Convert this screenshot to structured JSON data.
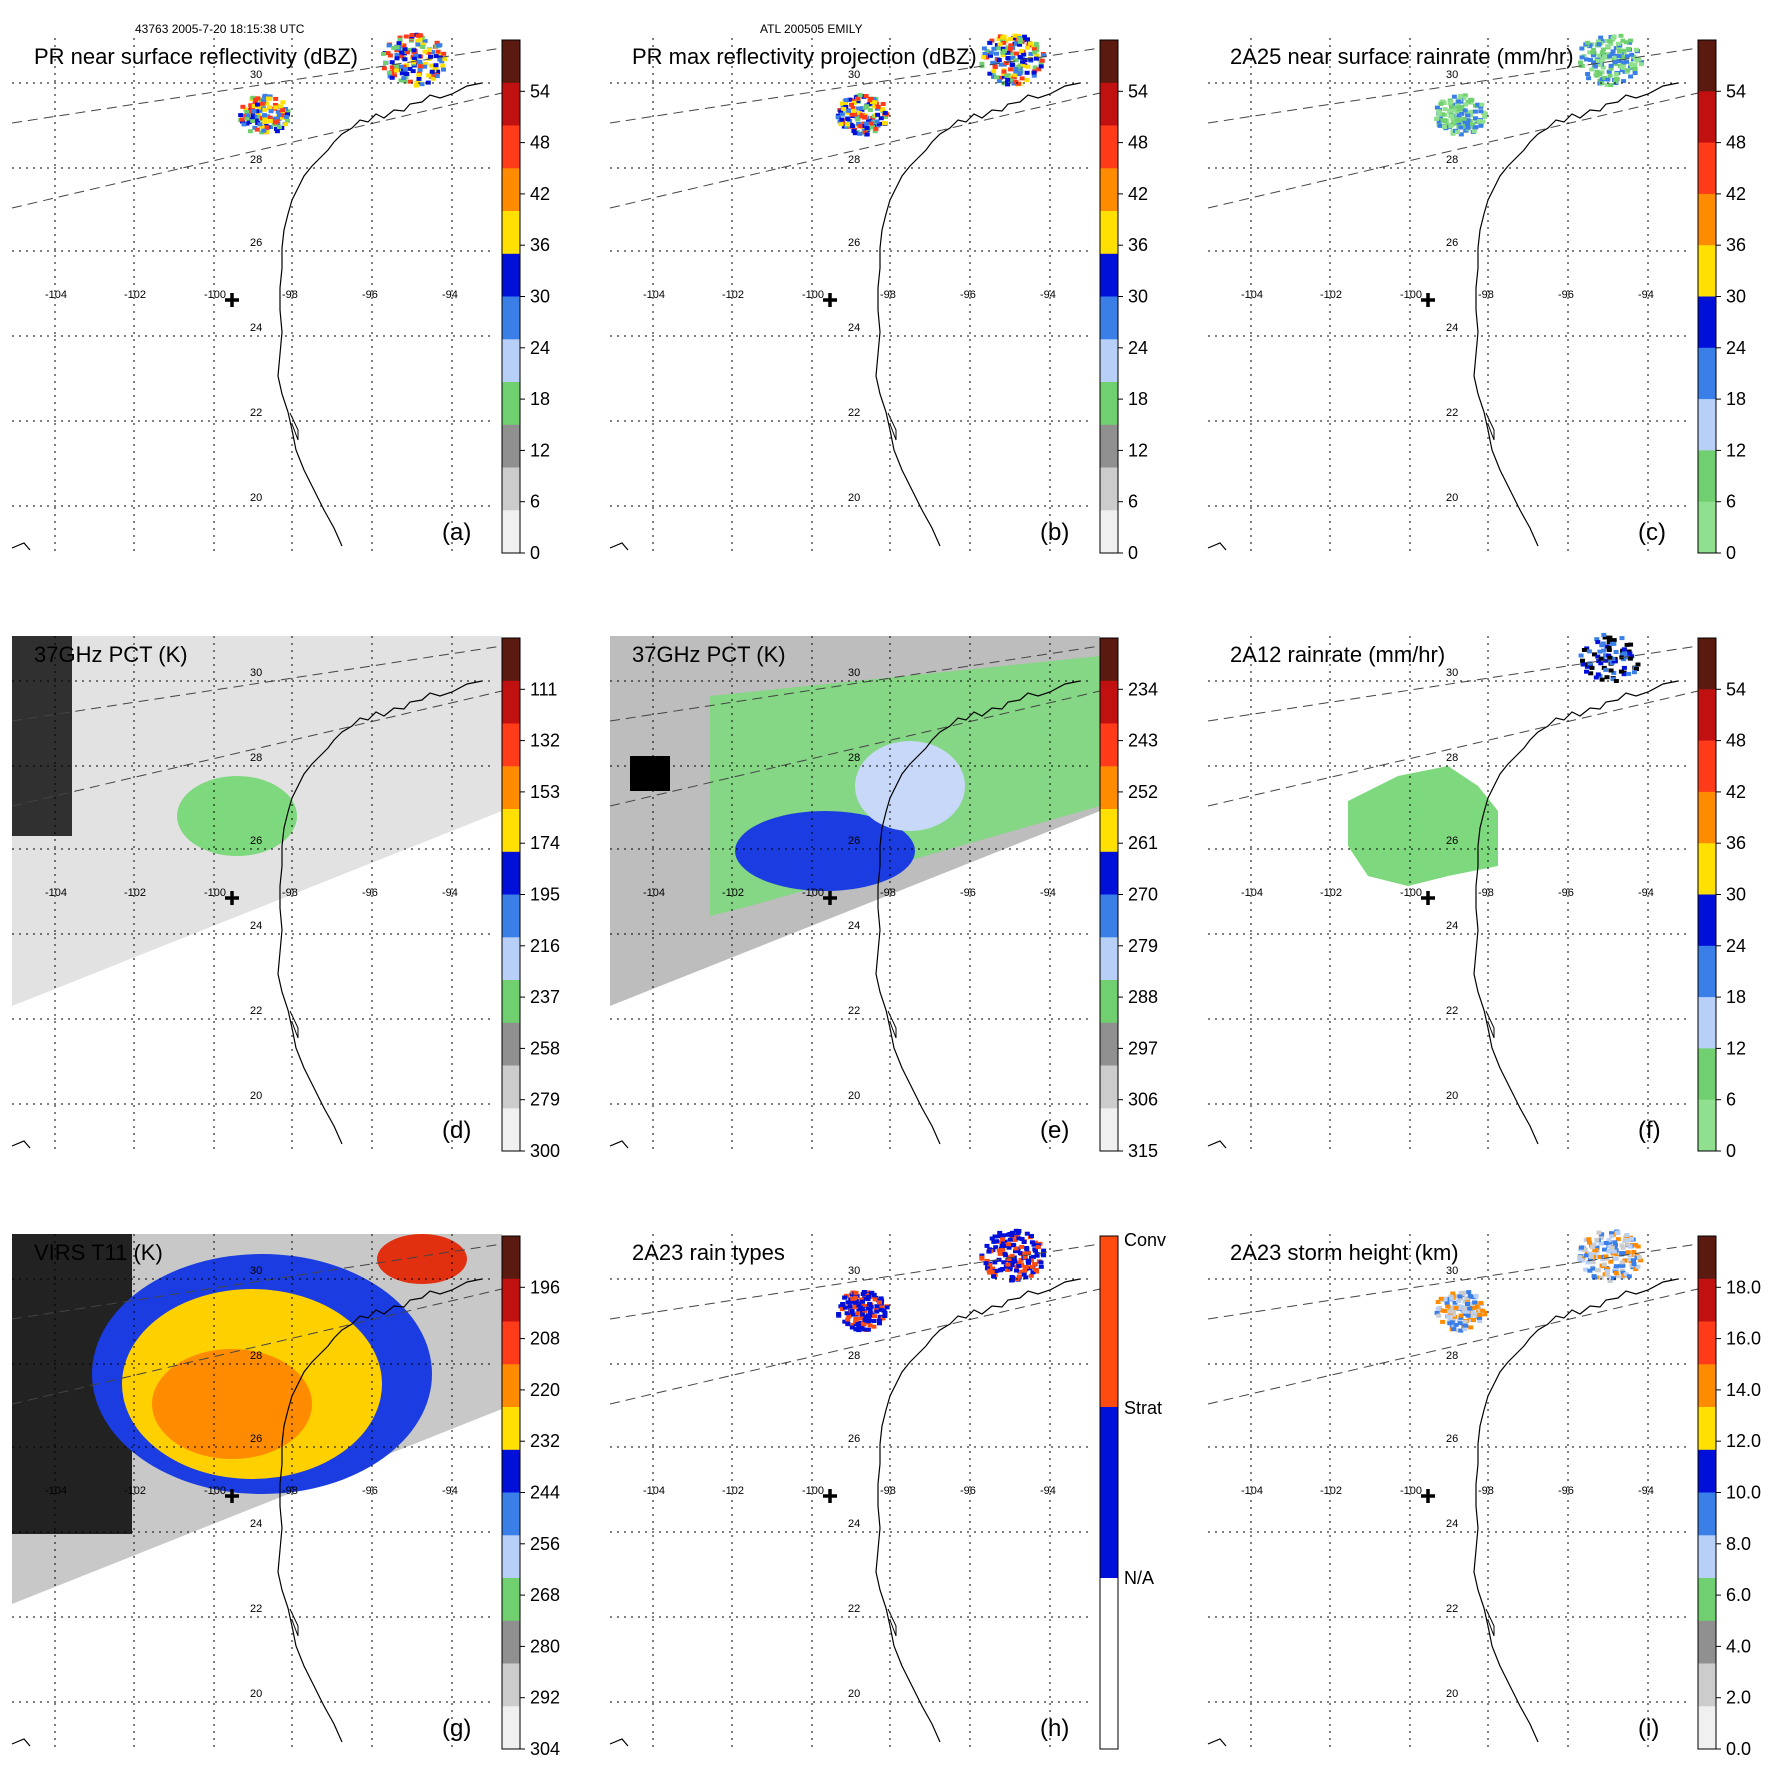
{
  "header": {
    "left": "43763 2005-7-20 18:15:38 UTC",
    "center": "ATL 200505 EMILY"
  },
  "colors": {
    "coast": "#000000",
    "grid": "#000000",
    "swath": "#444444"
  },
  "lon_ticks": [
    "-104",
    "-102",
    "-100",
    "-98",
    "-96",
    "-94"
  ],
  "lat_ticks": [
    "30",
    "28",
    "26",
    "24",
    "22",
    "20"
  ],
  "panels": [
    {
      "id": "a",
      "title": "PR near surface reflectivity (dBZ)",
      "letter": "(a)",
      "colorbar": {
        "labels": [
          "54",
          "48",
          "42",
          "36",
          "30",
          "24",
          "18",
          "12",
          "6",
          "0"
        ],
        "colors": [
          "#5a1a10",
          "#c01010",
          "#ff3b1a",
          "#ff8c00",
          "#ffe000",
          "#0010d8",
          "#3a7ee8",
          "#b8d0f8",
          "#70d070",
          "#909090",
          "#cccccc",
          "#f0f0f0"
        ]
      }
    },
    {
      "id": "b",
      "title": "PR max reflectivity projection (dBZ)",
      "letter": "(b)",
      "colorbar": {
        "labels": [
          "54",
          "48",
          "42",
          "36",
          "30",
          "24",
          "18",
          "12",
          "6",
          "0"
        ],
        "colors": [
          "#5a1a10",
          "#c01010",
          "#ff3b1a",
          "#ff8c00",
          "#ffe000",
          "#0010d8",
          "#3a7ee8",
          "#b8d0f8",
          "#70d070",
          "#909090",
          "#cccccc",
          "#f0f0f0"
        ]
      }
    },
    {
      "id": "c",
      "title": "2A25 near surface rainrate (mm/hr)",
      "letter": "(c)",
      "colorbar": {
        "labels": [
          "54",
          "48",
          "42",
          "36",
          "30",
          "24",
          "18",
          "12",
          "6",
          "0"
        ],
        "colors": [
          "#5a1a10",
          "#c01010",
          "#ff3b1a",
          "#ff8c00",
          "#ffe000",
          "#0010d8",
          "#3a7ee8",
          "#b8d0f8",
          "#70d070",
          "#90e090"
        ]
      }
    },
    {
      "id": "d",
      "title": "37GHz PCT (K)",
      "letter": "(d)",
      "colorbar": {
        "labels": [
          "111",
          "132",
          "153",
          "174",
          "195",
          "216",
          "237",
          "258",
          "279",
          "300"
        ],
        "colors": [
          "#5a1a10",
          "#c01010",
          "#ff3b1a",
          "#ff8c00",
          "#ffe000",
          "#0010d8",
          "#3a7ee8",
          "#b8d0f8",
          "#70d070",
          "#909090",
          "#cccccc",
          "#f0f0f0"
        ]
      }
    },
    {
      "id": "e",
      "title": "37GHz PCT (K)",
      "letter": "(e)",
      "colorbar": {
        "labels": [
          "234",
          "243",
          "252",
          "261",
          "270",
          "279",
          "288",
          "297",
          "306",
          "315"
        ],
        "colors": [
          "#5a1a10",
          "#c01010",
          "#ff3b1a",
          "#ff8c00",
          "#ffe000",
          "#0010d8",
          "#3a7ee8",
          "#b8d0f8",
          "#70d070",
          "#909090",
          "#cccccc",
          "#f0f0f0"
        ]
      }
    },
    {
      "id": "f",
      "title": "2A12 rainrate (mm/hr)",
      "letter": "(f)",
      "colorbar": {
        "labels": [
          "54",
          "48",
          "42",
          "36",
          "30",
          "24",
          "18",
          "12",
          "6",
          "0"
        ],
        "colors": [
          "#5a1a10",
          "#c01010",
          "#ff3b1a",
          "#ff8c00",
          "#ffe000",
          "#0010d8",
          "#3a7ee8",
          "#b8d0f8",
          "#70d070",
          "#90e090"
        ]
      }
    },
    {
      "id": "g",
      "title": "VIRS T11 (K)",
      "letter": "(g)",
      "colorbar": {
        "labels": [
          "196",
          "208",
          "220",
          "232",
          "244",
          "256",
          "268",
          "280",
          "292",
          "304"
        ],
        "colors": [
          "#5a1a10",
          "#c01010",
          "#ff3b1a",
          "#ff8c00",
          "#ffe000",
          "#0010d8",
          "#3a7ee8",
          "#b8d0f8",
          "#70d070",
          "#909090",
          "#cccccc",
          "#f0f0f0"
        ]
      }
    },
    {
      "id": "h",
      "title": "2A23 rain types",
      "letter": "(h)",
      "colorbar": {
        "labels": [
          "Conv",
          "Strat",
          "N/A"
        ],
        "colors": [
          "#ff4a10",
          "#0010d8",
          "#ffffff"
        ]
      }
    },
    {
      "id": "i",
      "title": "2A23 storm height (km)",
      "letter": "(i)",
      "colorbar": {
        "labels": [
          "18.0",
          "16.0",
          "14.0",
          "12.0",
          "10.0",
          "8.0",
          "6.0",
          "4.0",
          "2.0",
          "0.0"
        ],
        "colors": [
          "#5a1a10",
          "#c01010",
          "#ff3b1a",
          "#ff8c00",
          "#ffe000",
          "#0010d8",
          "#3a7ee8",
          "#b8d0f8",
          "#70d070",
          "#909090",
          "#cccccc",
          "#f0f0f0"
        ]
      }
    }
  ]
}
